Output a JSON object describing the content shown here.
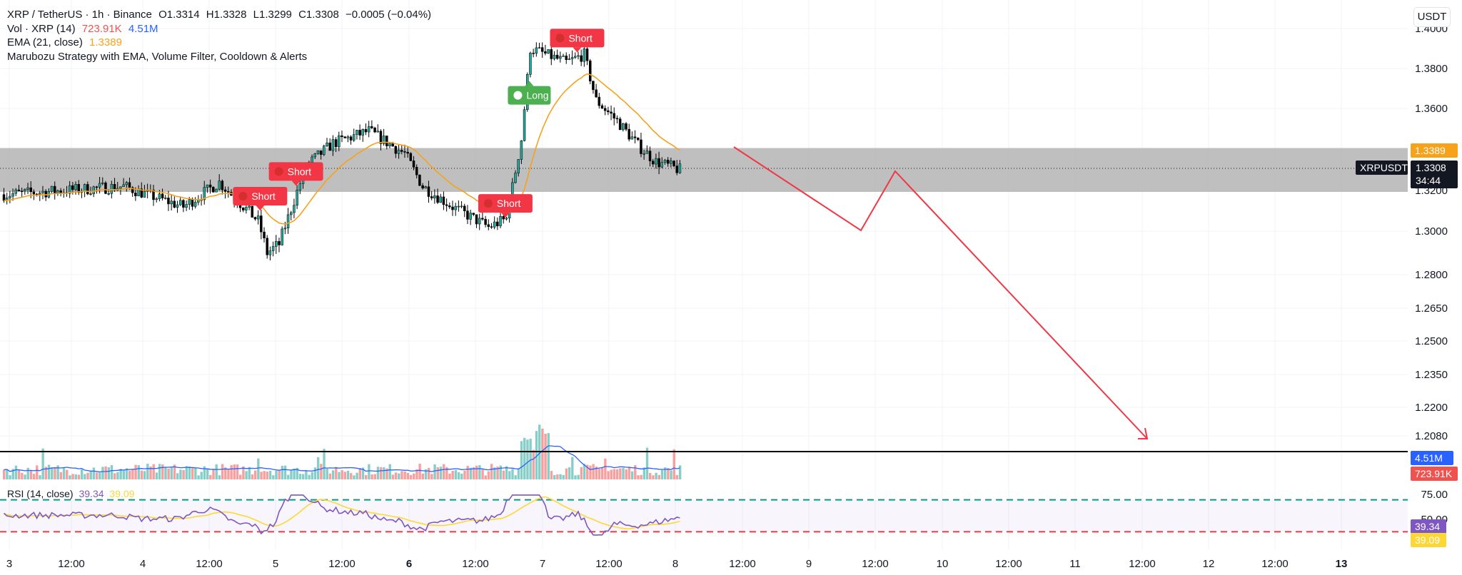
{
  "legend": {
    "symbol": "XRP / TetherUS · 1h · Binance",
    "open": "O1.3314",
    "high": "H1.3328",
    "low": "L1.3299",
    "close": "C1.3308",
    "change": "−0.0005 (−0.04%)",
    "vol_label": "Vol · XRP (14)",
    "vol_value": "723.91K",
    "vol_ma_value": "4.51M",
    "ema_label": "EMA (21, close)",
    "ema_value": "1.3389",
    "strategy_label": "Marubozu Strategy with EMA, Volume Filter, Cooldown & Alerts",
    "rsi_label": "RSI (14, close)",
    "rsi_value": "39.34",
    "rsi_ma_value": "39.09"
  },
  "currency": "USDT",
  "colors": {
    "up": "#26a69a",
    "down": "#ef5350",
    "ema": "#f7a21b",
    "vol_ma": "#2962ff",
    "rsi": "#7e57c2",
    "rsi_ma": "#fdd835",
    "zone": "#a9a9a9",
    "drawing": "#f23645",
    "long": "#4caf50"
  },
  "chart_data": {
    "type": "candlestick",
    "symbol": "XRPUSDT",
    "timeframe": "1h",
    "x_ticks": [
      "3",
      "12:00",
      "4",
      "12:00",
      "5",
      "12:00",
      "6",
      "12:00",
      "7",
      "12:00",
      "8",
      "12:00",
      "9",
      "12:00",
      "10",
      "12:00",
      "11",
      "12:00",
      "12",
      "12:00",
      "13"
    ],
    "y_ticks": [
      "1.4000",
      "1.3800",
      "1.3600",
      "1.3200",
      "1.3000",
      "1.2800",
      "1.2650",
      "1.2500",
      "1.2350",
      "1.2200",
      "1.2080"
    ],
    "price_labels": {
      "ema": "1.3389",
      "symbol": "XRPUSDT",
      "last": "1.3308",
      "countdown": "34:44",
      "vol_ma": "4.51M",
      "vol": "723.91K"
    },
    "rsi_ticks": [
      "75.00",
      "50.00"
    ],
    "rsi_labels": [
      "39.34",
      "39.09"
    ],
    "rsi_levels": {
      "upper": 70,
      "middle": 50,
      "lower": 30
    },
    "signals": [
      {
        "label": "Short",
        "side": "short"
      },
      {
        "label": "Short",
        "side": "short"
      },
      {
        "label": "Short",
        "side": "short"
      },
      {
        "label": "Long",
        "side": "long"
      },
      {
        "label": "Short",
        "side": "short"
      }
    ],
    "zone": {
      "from": 1.32,
      "to": 1.34
    },
    "series_shape": {
      "price_key_points": [
        [
          0,
          1.318
        ],
        [
          40,
          1.322
        ],
        [
          60,
          1.312
        ],
        [
          72,
          1.324
        ],
        [
          85,
          1.305
        ],
        [
          88,
          1.29
        ],
        [
          92,
          1.294
        ],
        [
          101,
          1.332
        ],
        [
          110,
          1.343
        ],
        [
          122,
          1.349
        ],
        [
          134,
          1.338
        ],
        [
          140,
          1.322
        ],
        [
          150,
          1.312
        ],
        [
          162,
          1.302
        ],
        [
          168,
          1.306
        ],
        [
          173,
          1.345
        ],
        [
          176,
          1.39
        ],
        [
          183,
          1.386
        ],
        [
          188,
          1.383
        ],
        [
          194,
          1.387
        ],
        [
          198,
          1.364
        ],
        [
          205,
          1.354
        ],
        [
          212,
          1.342
        ],
        [
          218,
          1.334
        ],
        [
          226,
          1.33
        ]
      ]
    }
  }
}
